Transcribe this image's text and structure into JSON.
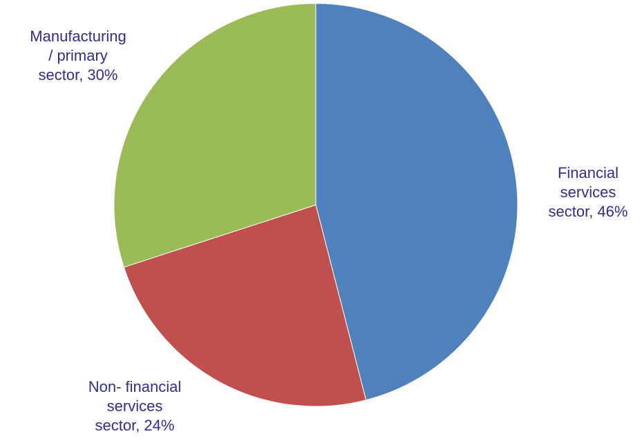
{
  "chart_data": {
    "type": "pie",
    "title": "",
    "slices": [
      {
        "label_lines": [
          "Financial",
          "services",
          "sector, 46%"
        ],
        "value": 46,
        "color": "#4f81bd"
      },
      {
        "label_lines": [
          "Non- financial",
          "services",
          "sector, 24%"
        ],
        "value": 24,
        "color": "#c0504d"
      },
      {
        "label_lines": [
          "Manufacturing",
          "/ primary",
          "sector, 30%"
        ],
        "value": 30,
        "color": "#9bbb59"
      }
    ],
    "start_angle": "12 o'clock",
    "direction": "clockwise",
    "legend": "none",
    "label_color": "#2e2e8c"
  }
}
